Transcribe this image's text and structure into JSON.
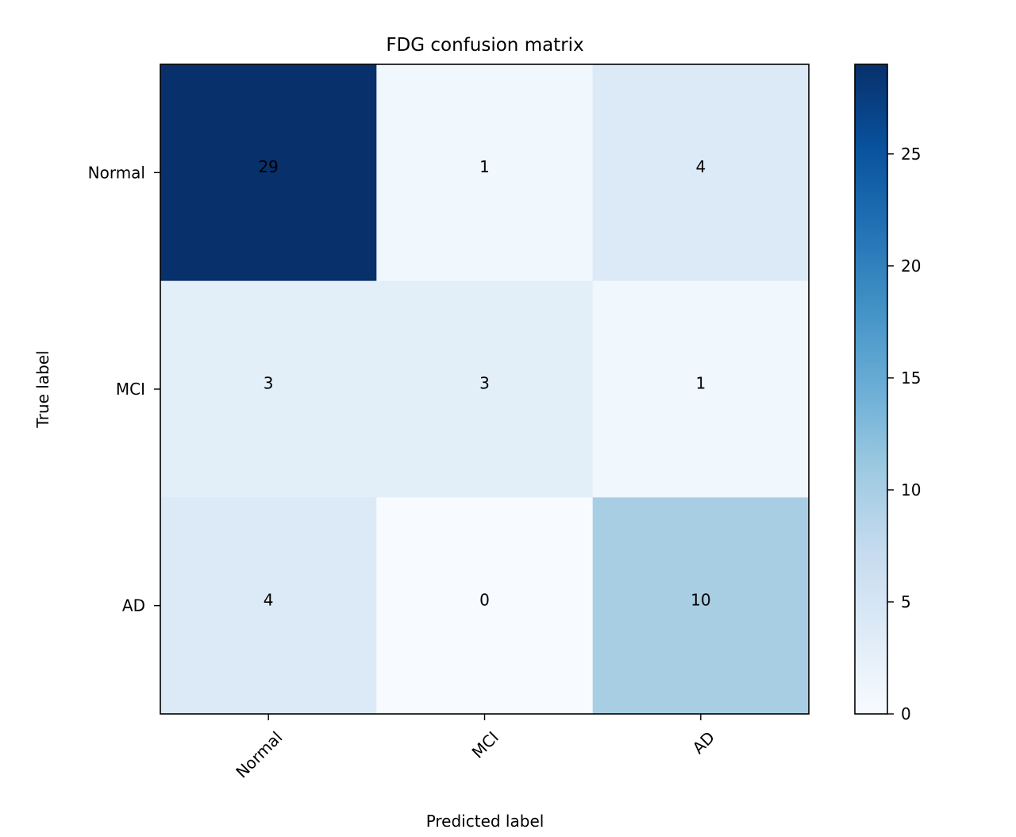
{
  "chart_data": {
    "type": "heatmap",
    "title": "FDG confusion matrix",
    "xlabel": "Predicted label",
    "ylabel": "True label",
    "x_categories": [
      "Normal",
      "MCI",
      "AD"
    ],
    "y_categories": [
      "Normal",
      "MCI",
      "AD"
    ],
    "values": [
      [
        29,
        1,
        4
      ],
      [
        3,
        3,
        1
      ],
      [
        4,
        0,
        10
      ]
    ],
    "colorbar": {
      "min": 0,
      "max": 29,
      "ticks": [
        0,
        5,
        10,
        15,
        20,
        25
      ]
    },
    "colormap": "Blues",
    "grid": false
  }
}
